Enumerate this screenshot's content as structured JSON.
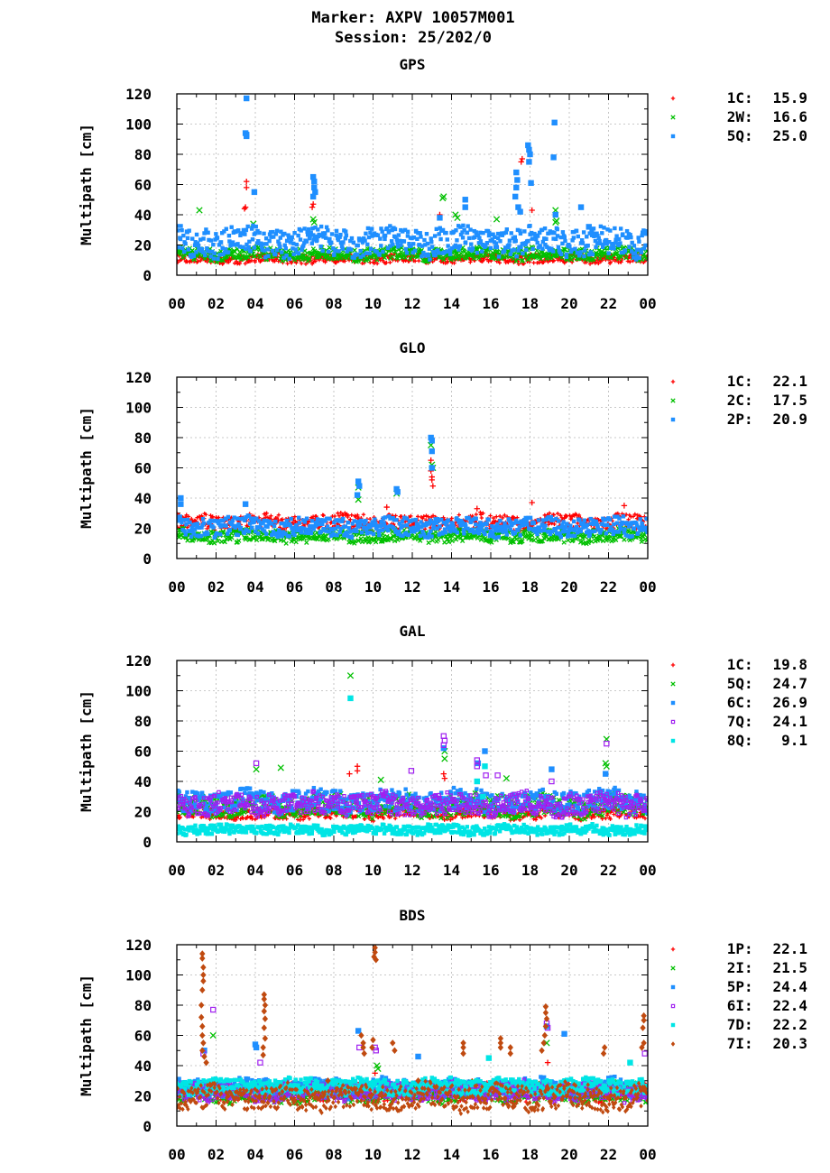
{
  "figure": {
    "title_line1": "Marker: AXPV 10057M001",
    "title_line2": "Session: 25/202/0"
  },
  "chart_data": [
    {
      "type": "scatter",
      "title": "GPS",
      "ylabel": "Multipath [cm]",
      "xlabel": "",
      "xlim": [
        0,
        24
      ],
      "ylim": [
        0,
        120
      ],
      "xticks": [
        "00",
        "02",
        "04",
        "06",
        "08",
        "10",
        "12",
        "14",
        "16",
        "18",
        "20",
        "22",
        "00"
      ],
      "yticks": [
        "0",
        "20",
        "40",
        "60",
        "80",
        "100",
        "120"
      ],
      "grid": true,
      "legend_position": "right",
      "series": [
        {
          "name": "1C",
          "rms_label": "15.9",
          "marker": "plus",
          "color": "#ff0000",
          "base": 11,
          "spread": 3,
          "outliers": [
            [
              3.45,
              44
            ],
            [
              3.5,
              45
            ],
            [
              3.55,
              58
            ],
            [
              3.55,
              62
            ],
            [
              6.9,
              45
            ],
            [
              6.95,
              47
            ],
            [
              13.4,
              40
            ],
            [
              17.55,
              75
            ],
            [
              17.6,
              77
            ],
            [
              18.1,
              43
            ]
          ]
        },
        {
          "name": "2W",
          "rms_label": "16.6",
          "marker": "cross",
          "color": "#00c000",
          "base": 14,
          "spread": 4,
          "outliers": [
            [
              1.15,
              43
            ],
            [
              3.9,
              34
            ],
            [
              6.95,
              37
            ],
            [
              7.0,
              35
            ],
            [
              13.55,
              51
            ],
            [
              13.6,
              52
            ],
            [
              14.2,
              40
            ],
            [
              14.3,
              38
            ],
            [
              16.3,
              37
            ],
            [
              19.3,
              43
            ],
            [
              19.3,
              35
            ],
            [
              19.35,
              36
            ]
          ]
        },
        {
          "name": "5Q",
          "rms_label": "25.0",
          "marker": "square",
          "color": "#1f8fff",
          "base": 22,
          "spread": 9,
          "outliers": [
            [
              3.55,
              117
            ],
            [
              3.5,
              94
            ],
            [
              3.55,
              93
            ],
            [
              3.55,
              92
            ],
            [
              3.95,
              55
            ],
            [
              6.95,
              65
            ],
            [
              7.0,
              62
            ],
            [
              7.0,
              58
            ],
            [
              7.05,
              55
            ],
            [
              6.95,
              52
            ],
            [
              13.4,
              38
            ],
            [
              14.7,
              50
            ],
            [
              14.7,
              45
            ],
            [
              17.3,
              68
            ],
            [
              17.35,
              63
            ],
            [
              17.3,
              58
            ],
            [
              17.25,
              52
            ],
            [
              17.4,
              45
            ],
            [
              17.5,
              42
            ],
            [
              17.9,
              86
            ],
            [
              17.95,
              83
            ],
            [
              18.0,
              80
            ],
            [
              17.95,
              75
            ],
            [
              18.05,
              61
            ],
            [
              19.25,
              101
            ],
            [
              19.2,
              78
            ],
            [
              19.3,
              40
            ],
            [
              20.6,
              45
            ],
            [
              21.0,
              32
            ],
            [
              21.2,
              27
            ]
          ]
        }
      ]
    },
    {
      "type": "scatter",
      "title": "GLO",
      "ylabel": "Multipath [cm]",
      "xlabel": "",
      "xlim": [
        0,
        24
      ],
      "ylim": [
        0,
        120
      ],
      "xticks": [
        "00",
        "02",
        "04",
        "06",
        "08",
        "10",
        "12",
        "14",
        "16",
        "18",
        "20",
        "22",
        "00"
      ],
      "yticks": [
        "0",
        "20",
        "40",
        "60",
        "80",
        "100",
        "120"
      ],
      "grid": true,
      "legend_position": "right",
      "series": [
        {
          "name": "1C",
          "rms_label": "22.1",
          "marker": "plus",
          "color": "#ff0000",
          "base": 24,
          "spread": 5,
          "outliers": [
            [
              12.95,
              65
            ],
            [
              12.95,
              58
            ],
            [
              13.0,
              54
            ],
            [
              13.0,
              52
            ],
            [
              13.05,
              48
            ],
            [
              18.1,
              37
            ],
            [
              22.8,
              35
            ],
            [
              15.3,
              33
            ],
            [
              10.7,
              34
            ]
          ]
        },
        {
          "name": "2C",
          "rms_label": "17.5",
          "marker": "cross",
          "color": "#00c000",
          "base": 15,
          "spread": 4,
          "outliers": [
            [
              9.25,
              47
            ],
            [
              9.25,
              39
            ],
            [
              11.2,
              43
            ],
            [
              12.95,
              75
            ],
            [
              13.0,
              62
            ],
            [
              13.05,
              60
            ]
          ]
        },
        {
          "name": "2P",
          "rms_label": "20.9",
          "marker": "square",
          "color": "#1f8fff",
          "base": 21,
          "spread": 6,
          "outliers": [
            [
              0.2,
              40
            ],
            [
              0.2,
              36
            ],
            [
              3.5,
              36
            ],
            [
              9.25,
              51
            ],
            [
              9.3,
              48
            ],
            [
              9.2,
              42
            ],
            [
              11.2,
              46
            ],
            [
              11.25,
              44
            ],
            [
              12.95,
              80
            ],
            [
              13.0,
              78
            ],
            [
              13.0,
              71
            ],
            [
              13.0,
              60
            ]
          ]
        }
      ]
    },
    {
      "type": "scatter",
      "title": "GAL",
      "ylabel": "Multipath [cm]",
      "xlabel": "",
      "xlim": [
        0,
        24
      ],
      "ylim": [
        0,
        120
      ],
      "xticks": [
        "00",
        "02",
        "04",
        "06",
        "08",
        "10",
        "12",
        "14",
        "16",
        "18",
        "20",
        "22",
        "00"
      ],
      "yticks": [
        "0",
        "20",
        "40",
        "60",
        "80",
        "100",
        "120"
      ],
      "grid": true,
      "legend_position": "right",
      "series": [
        {
          "name": "1C",
          "rms_label": "19.8",
          "marker": "plus",
          "color": "#ff0000",
          "base": 19,
          "spread": 4,
          "outliers": [
            [
              8.8,
              45
            ],
            [
              9.2,
              50
            ],
            [
              9.2,
              47
            ],
            [
              13.6,
              45
            ],
            [
              13.65,
              42
            ],
            [
              9.9,
              30
            ]
          ]
        },
        {
          "name": "5Q",
          "rms_label": "24.7",
          "marker": "cross",
          "color": "#00c000",
          "base": 24,
          "spread": 7,
          "outliers": [
            [
              8.85,
              110
            ],
            [
              10.4,
              41
            ],
            [
              13.65,
              60
            ],
            [
              13.65,
              55
            ],
            [
              16.8,
              42
            ],
            [
              21.9,
              68
            ],
            [
              21.85,
              52
            ],
            [
              21.9,
              50
            ],
            [
              5.3,
              49
            ],
            [
              4.05,
              48
            ]
          ]
        },
        {
          "name": "6C",
          "rms_label": "26.9",
          "marker": "square",
          "color": "#1f8fff",
          "base": 27,
          "spread": 7,
          "outliers": [
            [
              15.7,
              60
            ],
            [
              15.35,
              52
            ],
            [
              13.6,
              62
            ],
            [
              19.1,
              48
            ],
            [
              21.85,
              45
            ]
          ]
        },
        {
          "name": "7Q",
          "rms_label": "24.1",
          "marker": "opensquare",
          "color": "#a020f0",
          "base": 25,
          "spread": 7,
          "outliers": [
            [
              4.05,
              52
            ],
            [
              11.95,
              47
            ],
            [
              13.6,
              70
            ],
            [
              13.65,
              67
            ],
            [
              13.6,
              64
            ],
            [
              15.3,
              54
            ],
            [
              15.3,
              50
            ],
            [
              15.75,
              44
            ],
            [
              16.35,
              44
            ],
            [
              21.9,
              65
            ],
            [
              19.1,
              40
            ]
          ]
        },
        {
          "name": "8Q",
          "rms_label": "9.1",
          "marker": "square",
          "color": "#00e5e5",
          "base": 8,
          "spread": 3,
          "outliers": [
            [
              8.85,
              95
            ],
            [
              15.7,
              50
            ],
            [
              15.3,
              40
            ],
            [
              15.6,
              30
            ]
          ]
        }
      ]
    },
    {
      "type": "scatter",
      "title": "BDS",
      "ylabel": "Multipath [cm]",
      "xlabel": "",
      "xlim": [
        0,
        24
      ],
      "ylim": [
        0,
        120
      ],
      "xticks": [
        "00",
        "02",
        "04",
        "06",
        "08",
        "10",
        "12",
        "14",
        "16",
        "18",
        "20",
        "22",
        "00"
      ],
      "yticks": [
        "0",
        "20",
        "40",
        "60",
        "80",
        "100",
        "120"
      ],
      "grid": true,
      "legend_position": "right",
      "series": [
        {
          "name": "1P",
          "rms_label": "22.1",
          "marker": "plus",
          "color": "#ff0000",
          "base": 23,
          "spread": 6,
          "outliers": [
            [
              10.1,
              35
            ],
            [
              18.9,
              42
            ]
          ]
        },
        {
          "name": "2I",
          "rms_label": "21.5",
          "marker": "cross",
          "color": "#00c000",
          "base": 22,
          "spread": 6,
          "outliers": [
            [
              1.85,
              60
            ],
            [
              10.2,
              40
            ],
            [
              10.25,
              38
            ],
            [
              18.85,
              55
            ]
          ]
        },
        {
          "name": "5P",
          "rms_label": "24.4",
          "marker": "square",
          "color": "#1f8fff",
          "base": 25,
          "spread": 6,
          "outliers": [
            [
              1.4,
              50
            ],
            [
              4.0,
              54
            ],
            [
              4.05,
              52
            ],
            [
              9.25,
              63
            ],
            [
              12.3,
              46
            ],
            [
              19.75,
              61
            ],
            [
              18.85,
              66
            ]
          ]
        },
        {
          "name": "6I",
          "rms_label": "22.4",
          "marker": "opensquare",
          "color": "#a020f0",
          "base": 23,
          "spread": 6,
          "outliers": [
            [
              1.85,
              77
            ],
            [
              1.35,
              48
            ],
            [
              9.3,
              52
            ],
            [
              10.1,
              52
            ],
            [
              10.15,
              50
            ],
            [
              18.85,
              68
            ],
            [
              18.9,
              65
            ],
            [
              23.85,
              48
            ],
            [
              4.25,
              42
            ]
          ]
        },
        {
          "name": "7D",
          "rms_label": "22.2",
          "marker": "square",
          "color": "#00e5e5",
          "base": 26,
          "spread": 5,
          "outliers": [
            [
              15.9,
              45
            ],
            [
              23.1,
              42
            ]
          ]
        },
        {
          "name": "7I",
          "rms_label": "20.3",
          "marker": "diamond",
          "color": "#c04a10",
          "base": 19,
          "spread": 8,
          "outliers": [
            [
              1.3,
              114
            ],
            [
              1.3,
              111
            ],
            [
              1.35,
              105
            ],
            [
              1.35,
              100
            ],
            [
              1.35,
              96
            ],
            [
              1.3,
              90
            ],
            [
              1.25,
              80
            ],
            [
              1.25,
              72
            ],
            [
              1.3,
              66
            ],
            [
              1.3,
              60
            ],
            [
              1.35,
              55
            ],
            [
              1.3,
              50
            ],
            [
              1.4,
              46
            ],
            [
              1.5,
              42
            ],
            [
              4.45,
              87
            ],
            [
              4.45,
              84
            ],
            [
              4.5,
              80
            ],
            [
              4.45,
              76
            ],
            [
              4.5,
              71
            ],
            [
              4.45,
              65
            ],
            [
              4.5,
              58
            ],
            [
              4.4,
              52
            ],
            [
              4.4,
              47
            ],
            [
              10.1,
              118
            ],
            [
              10.1,
              115
            ],
            [
              10.05,
              112
            ],
            [
              10.15,
              110
            ],
            [
              9.4,
              60
            ],
            [
              9.5,
              55
            ],
            [
              9.5,
              52
            ],
            [
              9.55,
              48
            ],
            [
              10.0,
              57
            ],
            [
              9.95,
              52
            ],
            [
              11.0,
              55
            ],
            [
              11.1,
              50
            ],
            [
              14.6,
              55
            ],
            [
              14.6,
              52
            ],
            [
              14.6,
              48
            ],
            [
              16.5,
              58
            ],
            [
              16.5,
              55
            ],
            [
              16.5,
              52
            ],
            [
              17.0,
              52
            ],
            [
              17.0,
              48
            ],
            [
              18.8,
              79
            ],
            [
              18.8,
              75
            ],
            [
              18.85,
              71
            ],
            [
              18.8,
              66
            ],
            [
              18.75,
              60
            ],
            [
              18.7,
              55
            ],
            [
              18.6,
              50
            ],
            [
              23.8,
              73
            ],
            [
              23.8,
              70
            ],
            [
              23.75,
              65
            ],
            [
              23.8,
              55
            ],
            [
              23.7,
              52
            ],
            [
              21.8,
              52
            ],
            [
              21.75,
              48
            ],
            [
              7.7,
              30
            ],
            [
              12.3,
              30
            ]
          ]
        }
      ]
    }
  ]
}
